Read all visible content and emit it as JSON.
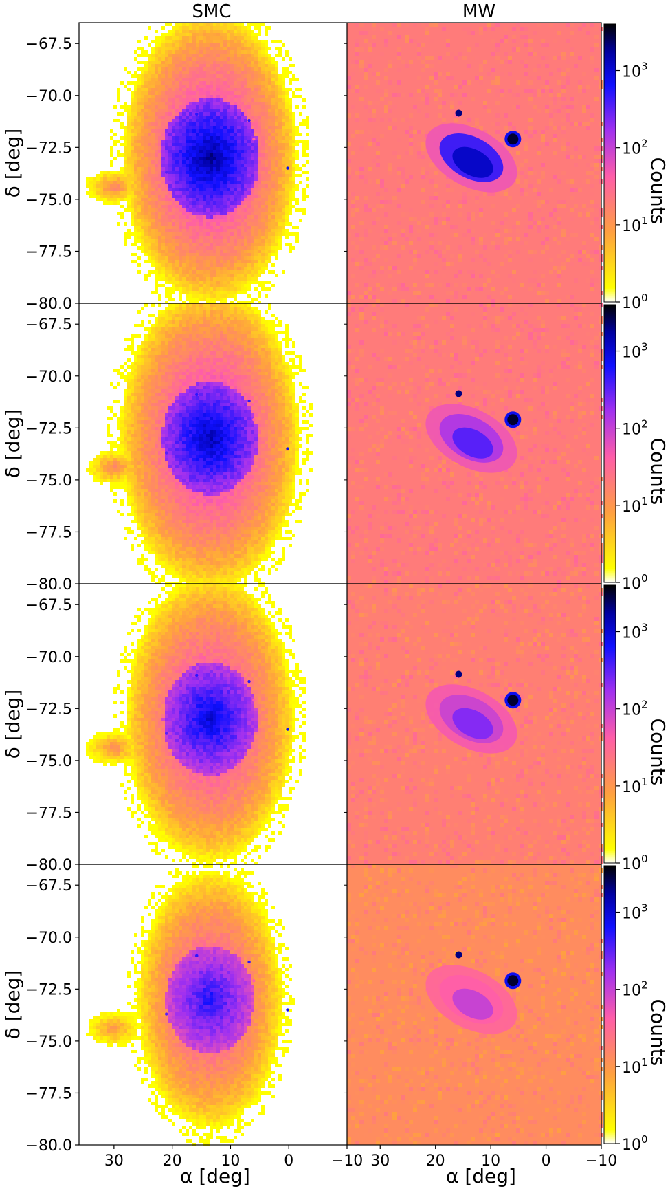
{
  "chart_data": {
    "type": "heatmap",
    "column_titles": [
      "SMC",
      "MW"
    ],
    "rows": 4,
    "xlabel": "α [deg]",
    "ylabel": "δ [deg]",
    "xlim": [
      36,
      -10
    ],
    "ylim": [
      -80.0,
      -66.5
    ],
    "x_ticks": [
      30,
      20,
      10,
      0,
      -10
    ],
    "x_tick_labels": [
      "30",
      "20",
      "10",
      "0",
      "−10"
    ],
    "y_ticks": [
      -67.5,
      -70.0,
      -72.5,
      -75.0,
      -77.5,
      -80.0
    ],
    "y_tick_labels": [
      "−67.5",
      "−70.0",
      "−72.5",
      "−75.0",
      "−77.5",
      "−80.0"
    ],
    "colorbar": {
      "label": "Counts",
      "scale": "log",
      "range": [
        1,
        4000
      ],
      "ticks": [
        1,
        10,
        100,
        1000
      ],
      "tick_base": "10",
      "tick_exponents": [
        "0",
        "1",
        "2",
        "3"
      ],
      "colormap": [
        "#ffffff",
        "#ffff00",
        "#ffa040",
        "#ff5ea8",
        "#a030f0",
        "#1010ff",
        "#0000a0",
        "#000000"
      ]
    },
    "panels": {
      "smc": [
        {
          "center": [
            13.5,
            -73.0
          ],
          "core_radius_deg": [
            6.5,
            2.2
          ],
          "extent_deg": [
            15.0,
            7.0
          ],
          "level": 1.0
        },
        {
          "center": [
            13.5,
            -73.0
          ],
          "core_radius_deg": [
            6.3,
            2.1
          ],
          "extent_deg": [
            15.5,
            7.3
          ],
          "level": 0.97
        },
        {
          "center": [
            13.5,
            -73.0
          ],
          "core_radius_deg": [
            6.2,
            2.1
          ],
          "extent_deg": [
            14.5,
            6.9
          ],
          "level": 0.92
        },
        {
          "center": [
            13.5,
            -73.0
          ],
          "core_radius_deg": [
            5.8,
            2.0
          ],
          "extent_deg": [
            12.5,
            6.2
          ],
          "level": 0.85
        }
      ],
      "mw": [
        {
          "background_counts": 20,
          "smc_level": 0.75,
          "tuc47_center": [
            6.0,
            -72.1
          ],
          "ngc362_center": [
            15.8,
            -70.85
          ]
        },
        {
          "background_counts": 20,
          "smc_level": 0.6,
          "tuc47_center": [
            6.0,
            -72.1
          ],
          "ngc362_center": [
            15.8,
            -70.85
          ]
        },
        {
          "background_counts": 18,
          "smc_level": 0.55,
          "tuc47_center": [
            6.0,
            -72.1
          ],
          "ngc362_center": [
            15.8,
            -70.85
          ]
        },
        {
          "background_counts": 13,
          "smc_level": 0.45,
          "tuc47_center": [
            6.0,
            -72.1
          ],
          "ngc362_center": [
            15.8,
            -70.85
          ]
        }
      ]
    }
  }
}
